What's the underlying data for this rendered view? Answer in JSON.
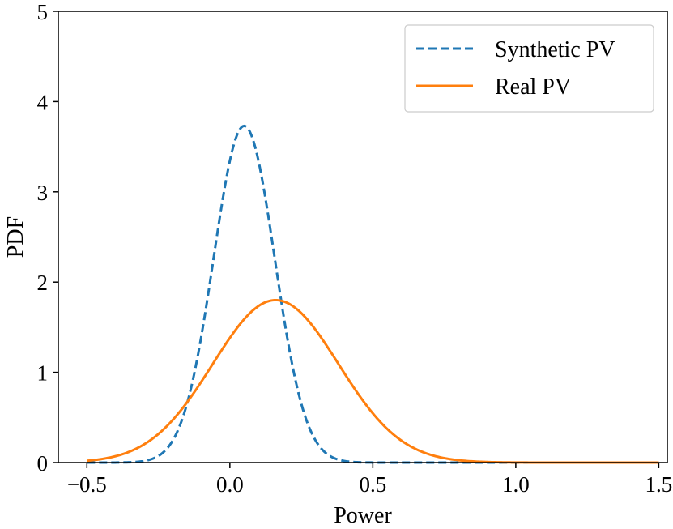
{
  "chart_data": {
    "type": "line",
    "title": "",
    "xlabel": "Power",
    "ylabel": "PDF",
    "xlim": [
      -0.6,
      1.53
    ],
    "ylim": [
      0,
      5
    ],
    "xticks": [
      -0.5,
      0.0,
      0.5,
      1.0,
      1.5
    ],
    "xtick_labels": [
      "−0.5",
      "0.0",
      "0.5",
      "1.0",
      "1.5"
    ],
    "yticks": [
      0,
      1,
      2,
      3,
      4,
      5
    ],
    "ytick_labels": [
      "0",
      "1",
      "2",
      "3",
      "4",
      "5"
    ],
    "grid": false,
    "legend_position": "top-right",
    "series": [
      {
        "name": "Synthetic PV",
        "style": "dashed",
        "color": "#1f77b4",
        "distribution": "gaussian",
        "mean": 0.05,
        "peak": 3.73,
        "std": 0.107,
        "x_range": [
          -0.5,
          1.5
        ]
      },
      {
        "name": "Real PV",
        "style": "solid",
        "color": "#ff7f0e",
        "distribution": "gaussian",
        "mean": 0.16,
        "peak": 1.8,
        "std": 0.22,
        "x_range": [
          -0.5,
          1.5
        ]
      }
    ]
  }
}
